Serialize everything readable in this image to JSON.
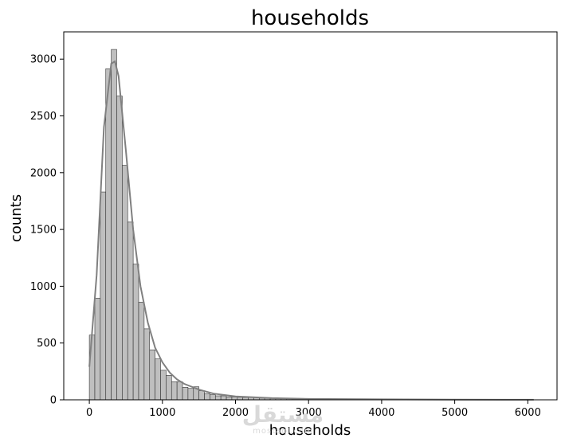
{
  "chart_data": {
    "type": "bar",
    "subtype": "histogram-with-kde",
    "title": "households",
    "xlabel": "households",
    "ylabel": "counts",
    "xlim": [
      -350,
      6400
    ],
    "ylim": [
      0,
      3240
    ],
    "xticks": [
      0,
      1000,
      2000,
      3000,
      4000,
      5000,
      6000
    ],
    "yticks": [
      0,
      500,
      1000,
      1500,
      2000,
      2500,
      3000
    ],
    "grid": false,
    "colors": {
      "bar_fill": "#bfbfbf",
      "bar_edge": "#333333",
      "kde_line": "#808080"
    },
    "bin_start": 0,
    "bin_width": 75,
    "values": [
      570,
      895,
      1830,
      2915,
      3085,
      2675,
      2065,
      1565,
      1195,
      860,
      625,
      440,
      360,
      260,
      215,
      160,
      160,
      110,
      100,
      115,
      80,
      55,
      45,
      35,
      35,
      25,
      25,
      22,
      20,
      22,
      20,
      15,
      15,
      12,
      12,
      10,
      10,
      8,
      8,
      8,
      7,
      6,
      6,
      6,
      5,
      5,
      5,
      4,
      4,
      4,
      4,
      3,
      3,
      3,
      3,
      3,
      3,
      2,
      2,
      2,
      2,
      2,
      2,
      2,
      2,
      2,
      2,
      2,
      2,
      2,
      2,
      2,
      2,
      2,
      2,
      2,
      2,
      2,
      2,
      2,
      1
    ],
    "kde": {
      "x": [
        0,
        100,
        200,
        300,
        350,
        400,
        500,
        600,
        700,
        800,
        900,
        1000,
        1100,
        1200,
        1300,
        1500,
        1700,
        2000,
        2500,
        3000,
        4000,
        5000,
        6000,
        6082
      ],
      "y": [
        290,
        1100,
        2400,
        2960,
        2980,
        2850,
        2200,
        1500,
        1000,
        680,
        460,
        330,
        240,
        180,
        140,
        90,
        55,
        30,
        15,
        8,
        4,
        2,
        1,
        1
      ]
    }
  },
  "watermark": {
    "main": "مستقل",
    "sub": "mostaql.com"
  }
}
